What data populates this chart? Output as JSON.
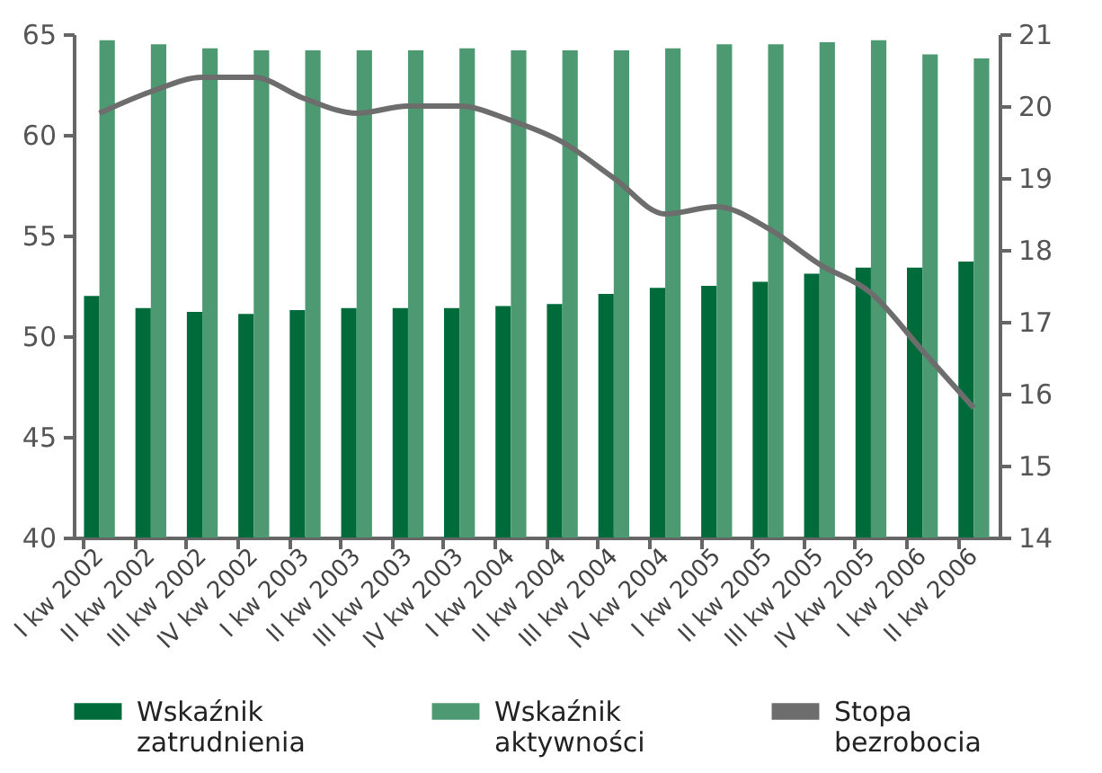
{
  "chart_data": {
    "type": "bar",
    "categories": [
      "I kw 2002",
      "II kw 2002",
      "III kw 2002",
      "IV kw 2002",
      "I kw 2003",
      "II kw 2003",
      "III kw 2003",
      "IV kw 2003",
      "I kw 2004",
      "II kw 2004",
      "III kw 2004",
      "IV kw 2004",
      "I kw 2005",
      "II kw 2005",
      "III kw 2005",
      "IV kw 2005",
      "I kw 2006",
      "II kw 2006"
    ],
    "series": [
      {
        "name": "Wskaźnik zatrudnienia",
        "color": "#006b3a",
        "values": [
          52.0,
          51.4,
          51.2,
          51.1,
          51.3,
          51.4,
          51.4,
          51.4,
          51.5,
          51.6,
          52.1,
          52.4,
          52.5,
          52.7,
          53.1,
          53.4,
          53.4,
          53.7
        ]
      },
      {
        "name": "Wskaźnik aktywności",
        "color": "#4d9a72",
        "values": [
          64.7,
          64.5,
          64.3,
          64.2,
          64.2,
          64.2,
          64.2,
          64.3,
          64.2,
          64.2,
          64.2,
          64.3,
          64.5,
          64.5,
          64.6,
          64.7,
          64.0,
          63.8
        ]
      },
      {
        "name": "Stopa bezrobocia",
        "color": "#6d6d6d",
        "type": "line",
        "axis": "y2",
        "values": [
          19.9,
          20.2,
          20.4,
          20.4,
          20.1,
          19.9,
          20.0,
          20.0,
          19.8,
          19.5,
          19.0,
          18.5,
          18.6,
          18.3,
          17.8,
          17.4,
          16.6,
          15.8
        ]
      }
    ],
    "ylim": [
      40,
      65
    ],
    "yticks": [
      40,
      45,
      50,
      55,
      60,
      65
    ],
    "y2lim": [
      14,
      21
    ],
    "y2ticks": [
      14,
      15,
      16,
      17,
      18,
      19,
      20,
      21
    ],
    "grid": false,
    "legend": "bottom",
    "marker": "none",
    "line_style": "solid"
  }
}
